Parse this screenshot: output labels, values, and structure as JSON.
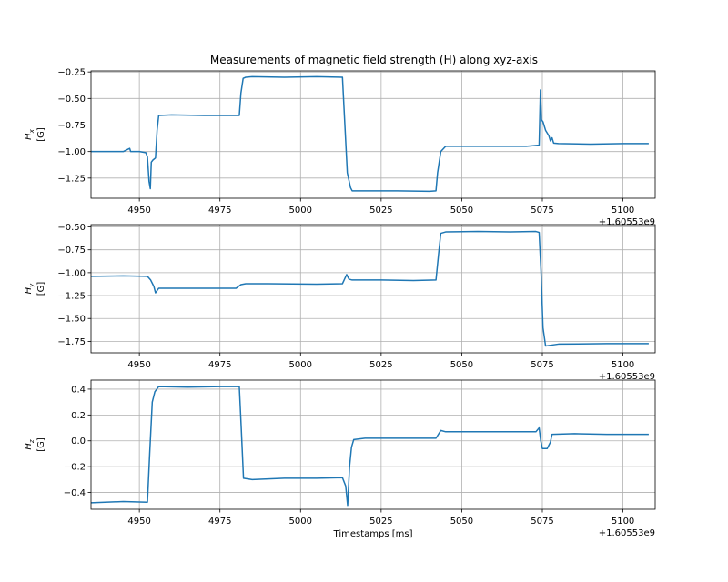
{
  "chart_data": {
    "type": "line",
    "title": "Measurements of magnetic field strength (H) along xyz-axis",
    "xlabel": "Timestamps [ms]",
    "x_offset_label": "+1.60553e9",
    "xlim": [
      4935,
      5110
    ],
    "x_ticks": [
      4950,
      4975,
      5000,
      5025,
      5050,
      5075,
      5100
    ],
    "x_tick_labels": [
      "4950",
      "4975",
      "5000",
      "5025",
      "5050",
      "5075",
      "5100"
    ],
    "line_color": "#1f77b4",
    "grid": true,
    "panels": [
      {
        "ylabel_main": "H",
        "ylabel_sub": "x",
        "ylabel_unit": "[G]",
        "ylim": [
          -1.44,
          -0.24
        ],
        "y_ticks": [
          -0.25,
          -0.5,
          -0.75,
          -1.0,
          -1.25
        ],
        "y_tick_labels": [
          "−0.25",
          "−0.50",
          "−0.75",
          "−1.00",
          "−1.25"
        ],
        "series": {
          "x": [
            4935,
            4945,
            4947,
            4947.3,
            4950,
            4952,
            4952.5,
            4953,
            4953.4,
            4953.7,
            4954.2,
            4955,
            4955.5,
            4956,
            4960,
            4970,
            4975,
            4981,
            4981.5,
            4982.2,
            4983,
            4985,
            4995,
            5005,
            5013,
            5013.5,
            5014.5,
            5015.5,
            5016,
            5018,
            5030,
            5040,
            5042,
            5042.5,
            5043.5,
            5045,
            5050,
            5060,
            5070,
            5074,
            5074.4,
            5074.7,
            5075.2,
            5076,
            5077,
            5077.5,
            5078,
            5078.5,
            5080,
            5090,
            5100,
            5108
          ],
          "y": [
            -1.0,
            -1.0,
            -0.97,
            -1.0,
            -1.0,
            -1.01,
            -1.05,
            -1.28,
            -1.35,
            -1.1,
            -1.08,
            -1.06,
            -0.8,
            -0.66,
            -0.655,
            -0.66,
            -0.66,
            -0.66,
            -0.45,
            -0.31,
            -0.3,
            -0.295,
            -0.3,
            -0.295,
            -0.3,
            -0.6,
            -1.2,
            -1.34,
            -1.37,
            -1.37,
            -1.37,
            -1.375,
            -1.37,
            -1.2,
            -1.0,
            -0.95,
            -0.95,
            -0.95,
            -0.95,
            -0.94,
            -0.42,
            -0.7,
            -0.72,
            -0.8,
            -0.85,
            -0.9,
            -0.87,
            -0.92,
            -0.925,
            -0.93,
            -0.925,
            -0.925
          ]
        }
      },
      {
        "ylabel_main": "H",
        "ylabel_sub": "y",
        "ylabel_unit": "[G]",
        "ylim": [
          -1.875,
          -0.475
        ],
        "y_ticks": [
          -0.5,
          -0.75,
          -1.0,
          -1.25,
          -1.5,
          -1.75
        ],
        "y_tick_labels": [
          "−0.50",
          "−0.75",
          "−1.00",
          "−1.25",
          "−1.50",
          "−1.75"
        ],
        "series": {
          "x": [
            4935,
            4945,
            4952.5,
            4953.5,
            4954.5,
            4955,
            4956,
            4960,
            4970,
            4980,
            4981.5,
            4983,
            4990,
            5005,
            5013,
            5014.3,
            5015,
            5016,
            5025,
            5035,
            5042,
            5042.8,
            5043.5,
            5045,
            5055,
            5065,
            5073,
            5074,
            5074.6,
            5075.2,
            5076,
            5078,
            5080,
            5095,
            5108
          ],
          "y": [
            -1.04,
            -1.035,
            -1.04,
            -1.08,
            -1.15,
            -1.22,
            -1.17,
            -1.17,
            -1.17,
            -1.17,
            -1.13,
            -1.12,
            -1.12,
            -1.125,
            -1.12,
            -1.02,
            -1.07,
            -1.08,
            -1.08,
            -1.085,
            -1.08,
            -0.8,
            -0.57,
            -0.555,
            -0.55,
            -0.555,
            -0.55,
            -0.56,
            -1.0,
            -1.6,
            -1.8,
            -1.79,
            -1.78,
            -1.775,
            -1.775
          ]
        }
      },
      {
        "ylabel_main": "H",
        "ylabel_sub": "z",
        "ylabel_unit": "[G]",
        "ylim": [
          -0.53,
          0.47
        ],
        "y_ticks": [
          0.4,
          0.2,
          0.0,
          -0.2,
          -0.4
        ],
        "y_tick_labels": [
          "0.4",
          "0.2",
          "0.0",
          "−0.2",
          "−0.4"
        ],
        "series": {
          "x": [
            4935,
            4945,
            4952.5,
            4953.2,
            4954,
            4954.8,
            4956,
            4965,
            4975,
            4981,
            4981.6,
            4982.3,
            4985,
            4995,
            5005,
            5013,
            5014,
            5014.6,
            5015.2,
            5015.8,
            5016.5,
            5020,
            5030,
            5042,
            5043.5,
            5045,
            5055,
            5065,
            5073,
            5074,
            5074.5,
            5075,
            5076.5,
            5077.5,
            5078,
            5085,
            5095,
            5108
          ],
          "y": [
            -0.48,
            -0.47,
            -0.475,
            -0.1,
            0.3,
            0.38,
            0.42,
            0.415,
            0.42,
            0.42,
            0.1,
            -0.29,
            -0.3,
            -0.29,
            -0.29,
            -0.285,
            -0.35,
            -0.5,
            -0.2,
            -0.05,
            0.01,
            0.02,
            0.02,
            0.02,
            0.08,
            0.07,
            0.07,
            0.07,
            0.07,
            0.1,
            0.0,
            -0.06,
            -0.06,
            -0.01,
            0.05,
            0.055,
            0.05,
            0.05
          ]
        }
      }
    ]
  }
}
